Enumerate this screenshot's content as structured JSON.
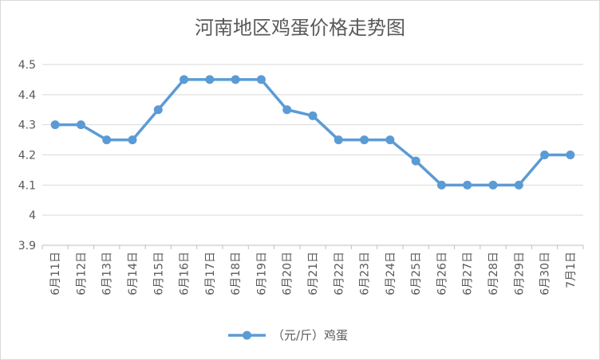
{
  "chart_data": {
    "type": "line",
    "title": "河南地区鸡蛋价格走势图",
    "xlabel": "",
    "ylabel": "",
    "categories": [
      "6月11日",
      "6月12日",
      "6月13日",
      "6月14日",
      "6月15日",
      "6月16日",
      "6月17日",
      "6月18日",
      "6月19日",
      "6月20日",
      "6月21日",
      "6月22日",
      "6月23日",
      "6月24日",
      "6月25日",
      "6月26日",
      "6月27日",
      "6月28日",
      "6月29日",
      "6月30日",
      "7月1日"
    ],
    "series": [
      {
        "name": "（元/斤）鸡蛋",
        "values": [
          4.3,
          4.3,
          4.25,
          4.25,
          4.35,
          4.45,
          4.45,
          4.45,
          4.45,
          4.35,
          4.33,
          4.25,
          4.25,
          4.25,
          4.18,
          4.1,
          4.1,
          4.1,
          4.1,
          4.2,
          4.2
        ]
      }
    ],
    "yticks": [
      "4.5",
      "4.4",
      "4.3",
      "4.2",
      "4.1",
      "4",
      "3.9"
    ],
    "ylim": [
      3.9,
      4.5
    ],
    "grid": true,
    "legend": "bottom",
    "color": "#5b9bd5"
  }
}
